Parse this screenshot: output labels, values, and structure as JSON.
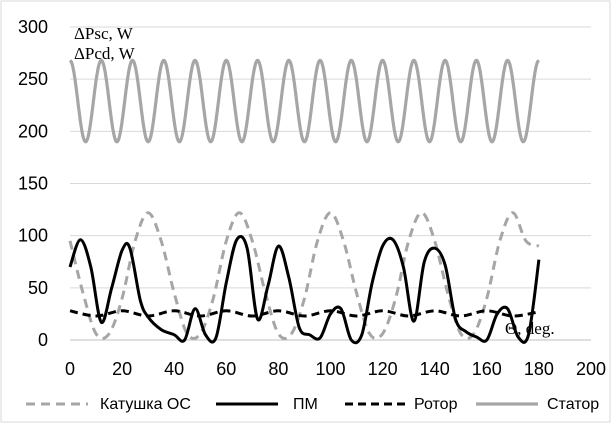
{
  "chart_data": {
    "type": "line",
    "ylabel_lines": [
      "ΔPsc, W",
      "ΔPcd, W"
    ],
    "xlabel": "Θ, deg.",
    "xlim": [
      0,
      200
    ],
    "ylim": [
      0,
      300
    ],
    "x_ticks": [
      "0",
      "20",
      "40",
      "60",
      "80",
      "100",
      "120",
      "140",
      "160",
      "180",
      "200"
    ],
    "y_ticks": [
      "0",
      "50",
      "100",
      "150",
      "200",
      "250",
      "300"
    ],
    "grid": "horizontal",
    "legend_position": "bottom",
    "series": [
      {
        "name": "Катушка ОС",
        "color": "#a6a6a6",
        "dash": "dashed",
        "x": [
          0,
          5,
          10,
          15,
          20,
          25,
          30,
          35,
          40,
          45,
          50,
          55,
          60,
          65,
          70,
          75,
          80,
          85,
          90,
          95,
          100,
          105,
          110,
          115,
          120,
          125,
          130,
          135,
          140,
          145,
          150,
          155,
          160,
          165,
          170,
          175,
          180
        ],
        "y": [
          95,
          45,
          6,
          6,
          40,
          95,
          122,
          95,
          45,
          6,
          6,
          40,
          95,
          122,
          95,
          45,
          6,
          6,
          40,
          95,
          122,
          95,
          45,
          6,
          6,
          40,
          95,
          122,
          95,
          45,
          6,
          6,
          40,
          95,
          122,
          95,
          90
        ]
      },
      {
        "name": "ПМ",
        "color": "#000000",
        "dash": "solid",
        "x": [
          0,
          4,
          8,
          12,
          16,
          20,
          23,
          27,
          30,
          35,
          40,
          44,
          48,
          52,
          56,
          60,
          64,
          68,
          72,
          76,
          80,
          84,
          88,
          92,
          96,
          100,
          104,
          108,
          112,
          116,
          120,
          124,
          128,
          132,
          136,
          140,
          144,
          148,
          152,
          156,
          160,
          164,
          168,
          172,
          176,
          180
        ],
        "y": [
          70,
          96,
          70,
          17,
          50,
          86,
          88,
          38,
          22,
          10,
          5,
          0,
          30,
          5,
          2,
          55,
          96,
          88,
          20,
          52,
          90,
          60,
          12,
          5,
          2,
          25,
          30,
          0,
          5,
          55,
          90,
          96,
          70,
          18,
          75,
          88,
          72,
          20,
          8,
          3,
          0,
          25,
          30,
          3,
          5,
          77
        ],
        "ref_ticks_note": "approximate trace"
      },
      {
        "name": "Ротор",
        "color": "#000000",
        "dash": "dashed",
        "x": [
          0,
          10,
          20,
          30,
          40,
          50,
          60,
          70,
          80,
          90,
          100,
          110,
          120,
          130,
          140,
          150,
          160,
          170,
          180
        ],
        "y": [
          28,
          23,
          28,
          23,
          28,
          23,
          28,
          23,
          28,
          23,
          28,
          23,
          28,
          23,
          28,
          23,
          28,
          23,
          27
        ]
      },
      {
        "name": "Статор",
        "color": "#a6a6a6",
        "dash": "solid",
        "period": 12,
        "x_start": 0,
        "x_end": 180,
        "y_max": 268,
        "y_min": 190
      }
    ]
  }
}
